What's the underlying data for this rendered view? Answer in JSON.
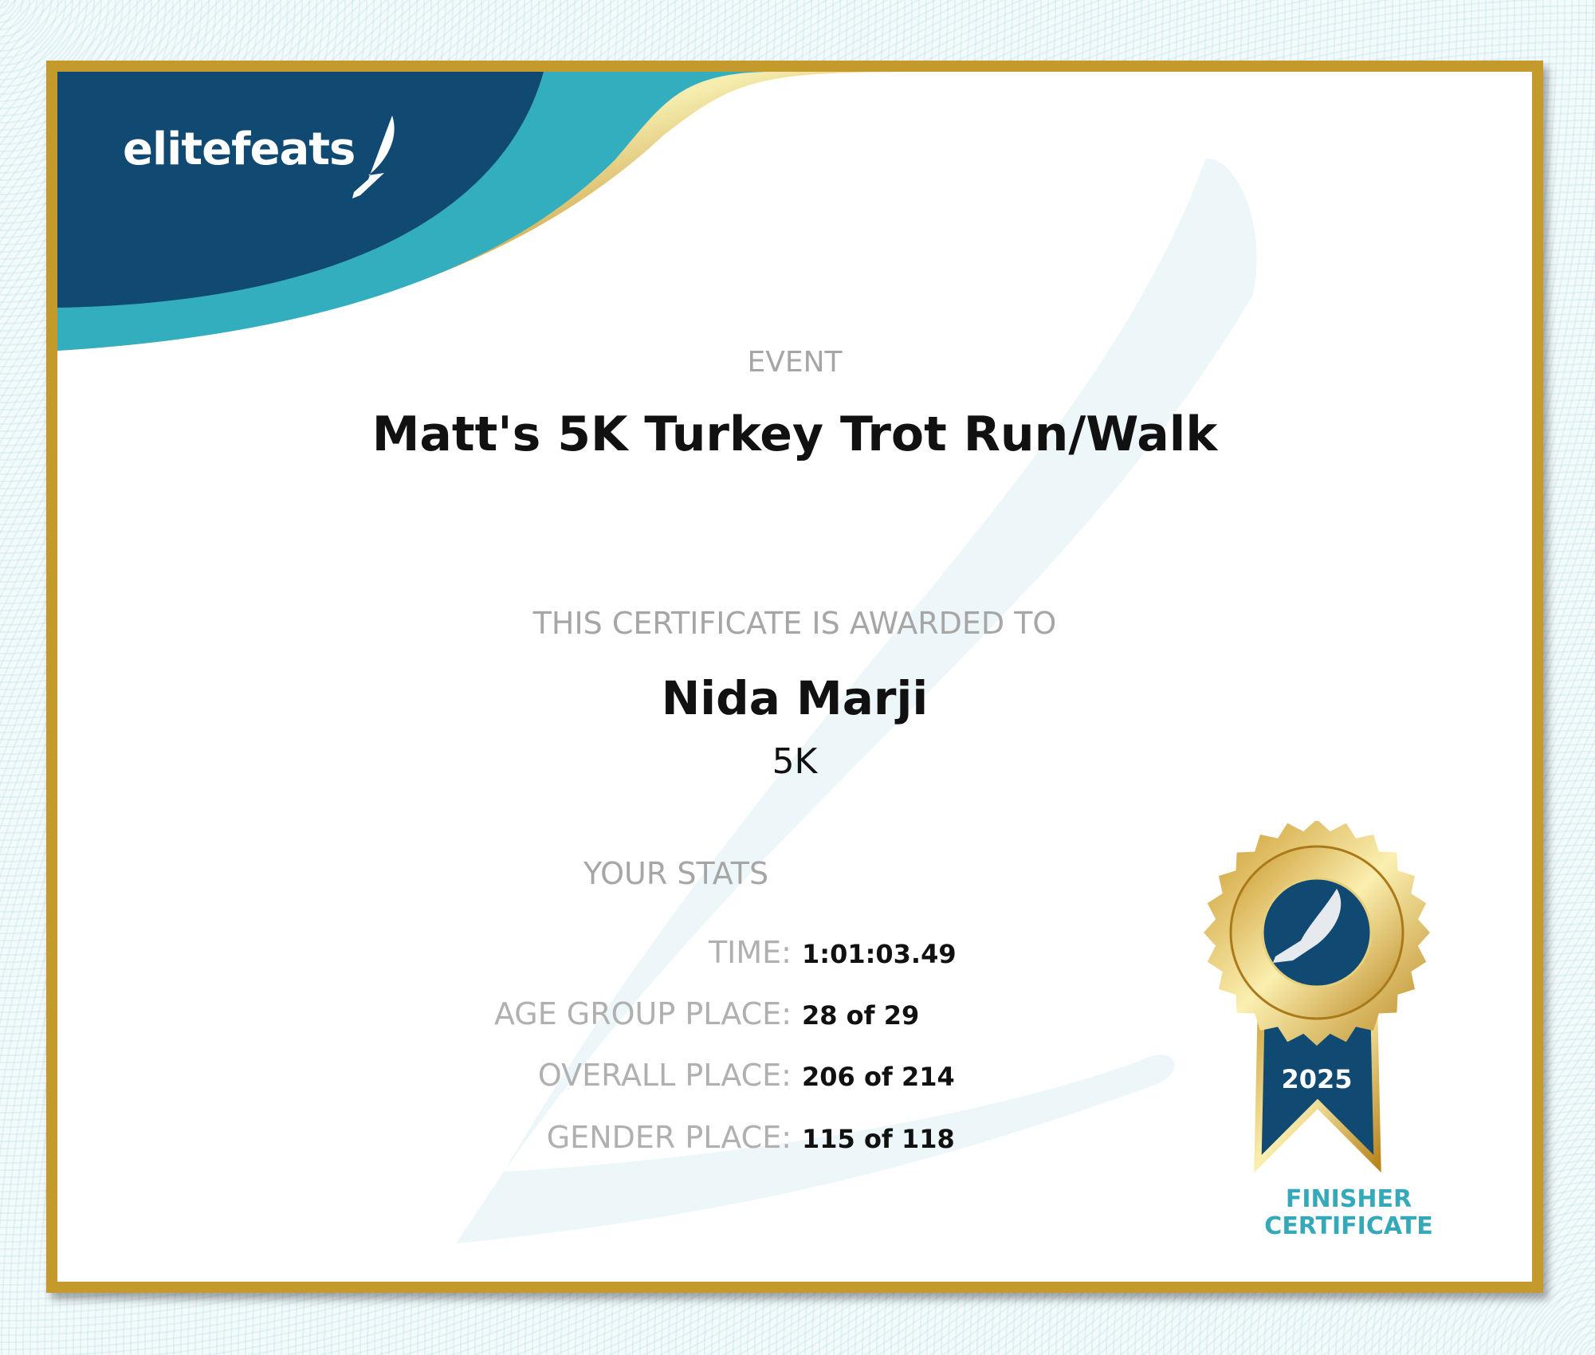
{
  "brand": {
    "logo_text": "elitefeats",
    "colors": {
      "navy": "#104a72",
      "teal": "#33aebf",
      "gold": "#c49a2c"
    }
  },
  "event": {
    "label": "EVENT",
    "name": "Matt's 5K Turkey Trot Run/Walk"
  },
  "award": {
    "label": "THIS CERTIFICATE IS AWARDED TO",
    "recipient": "Nida Marji",
    "race": "5K"
  },
  "stats": {
    "label": "YOUR STATS",
    "rows": [
      {
        "key": "TIME:",
        "value": "1:01:03.49"
      },
      {
        "key": "AGE GROUP PLACE:",
        "value": "28 of 29"
      },
      {
        "key": "OVERALL PLACE:",
        "value": "206 of 214"
      },
      {
        "key": "GENDER PLACE:",
        "value": "115 of 118"
      }
    ]
  },
  "medal": {
    "year": "2025",
    "line1": "FINISHER",
    "line2": "CERTIFICATE",
    "icon": "winged-foot-icon"
  }
}
